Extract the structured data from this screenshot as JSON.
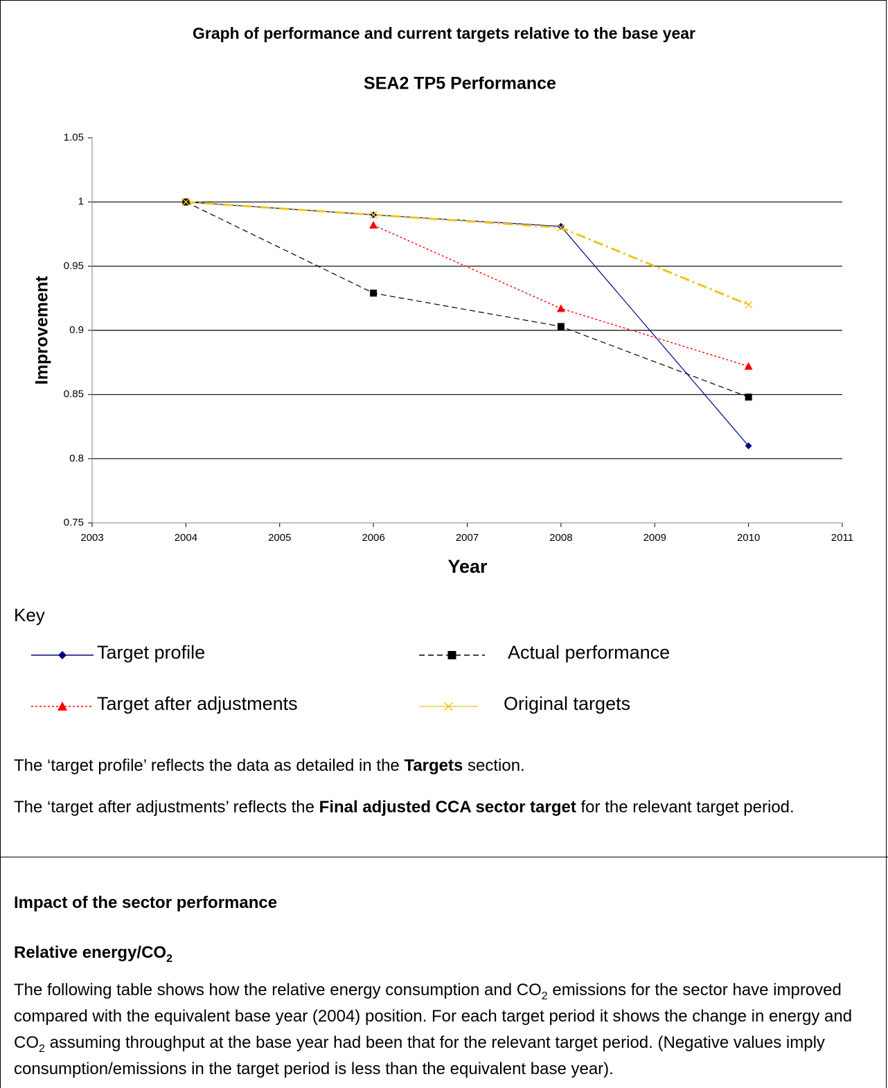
{
  "chart_data": {
    "type": "line",
    "heading": "Graph of performance and current targets relative to the base year",
    "title": "SEA2 TP5 Performance",
    "xlabel": "Year",
    "ylabel": "Improvement",
    "x": [
      2004,
      2006,
      2008,
      2010
    ],
    "xlim": [
      2003,
      2011
    ],
    "xticks": [
      2003,
      2004,
      2005,
      2006,
      2007,
      2008,
      2009,
      2010,
      2011
    ],
    "ylim": [
      0.75,
      1.05
    ],
    "yticks": [
      0.75,
      0.8,
      0.85,
      0.9,
      0.95,
      1,
      1.05
    ],
    "grid": true,
    "legend_title": "Key",
    "series": [
      {
        "name": "Target profile",
        "color": "#000080",
        "marker": "diamond",
        "dash": "solid",
        "values": [
          1,
          0.99,
          0.981,
          0.81
        ]
      },
      {
        "name": "Actual performance",
        "color": "#000000",
        "marker": "square",
        "dash": "dashed",
        "values": [
          1,
          0.929,
          0.903,
          0.848
        ]
      },
      {
        "name": "Target after adjustments",
        "color": "#ff0000",
        "marker": "triangle",
        "dash": "dotted",
        "values": [
          null,
          0.982,
          0.917,
          0.872
        ]
      },
      {
        "name": "Original targets",
        "color": "#f0c419",
        "marker": "cross",
        "dash": "dashdot",
        "values": [
          1,
          0.99,
          0.98,
          0.92
        ]
      }
    ]
  },
  "notes": [
    [
      "The ‘target profile’ reflects the data as detailed in the ",
      "Targets",
      " section."
    ],
    [
      "The ‘target after adjustments’ reflects the ",
      "Final adjusted CCA sector target",
      " for the relevant target period."
    ]
  ],
  "section": {
    "heading": "Impact of the sector performance",
    "subheading": [
      "Relative energy/CO",
      "2"
    ],
    "paragraph": [
      "The following table shows how the relative energy consumption and CO",
      "2",
      " emissions for the sector have improved compared with the equivalent base year (2004) position.  For each target period it shows the change in energy and CO",
      "2",
      " assuming throughput at the base year had been that for the relevant target period.  (Negative values imply consumption/emissions in the target period is less than the equivalent base year)."
    ]
  }
}
